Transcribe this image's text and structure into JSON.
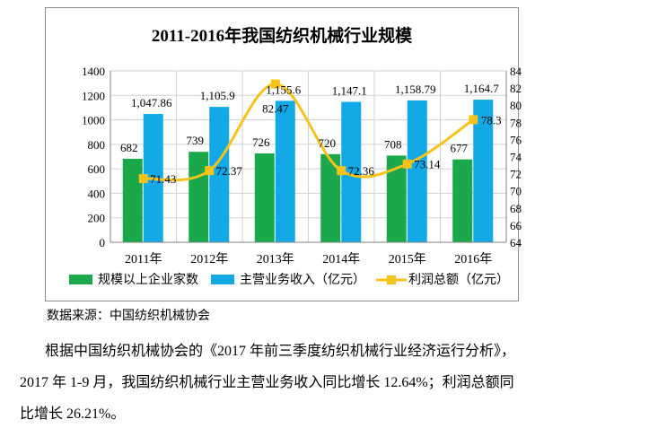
{
  "chart_data": {
    "type": "bar+line",
    "title": "2011-2016年我国纺织机械行业规模",
    "categories": [
      "2011年",
      "2012年",
      "2013年",
      "2014年",
      "2015年",
      "2016年"
    ],
    "series": [
      {
        "name": "规模以上企业家数",
        "type": "bar",
        "axis": "left",
        "color": "#1aa84b",
        "values": [
          682,
          739,
          726,
          720,
          708,
          677
        ],
        "labels": [
          "682",
          "739",
          "726",
          "720",
          "708",
          "677"
        ]
      },
      {
        "name": "主营业务收入（亿元）",
        "type": "bar",
        "axis": "left",
        "color": "#12a9e6",
        "values": [
          1047.86,
          1105.9,
          1155.6,
          1147.1,
          1158.79,
          1164.7
        ],
        "labels": [
          "1,047.86",
          "1,105.9",
          "1,155.6",
          "1,147.1",
          "1,158.79",
          "1,164.7"
        ]
      },
      {
        "name": "利润总额（亿元）",
        "type": "line",
        "axis": "right",
        "color": "#f7c31a",
        "values": [
          71.43,
          72.37,
          82.47,
          72.36,
          73.14,
          78.3
        ],
        "labels": [
          "71.43",
          "72.37",
          "82.47",
          "72.36",
          "73.14",
          "78.3"
        ]
      }
    ],
    "y_left": {
      "min": 0,
      "max": 1400,
      "step": 200,
      "ticks": [
        "0",
        "200",
        "400",
        "600",
        "800",
        "1000",
        "1200",
        "1400"
      ]
    },
    "y_right": {
      "min": 64,
      "max": 84,
      "step": 2,
      "ticks": [
        "64",
        "66",
        "68",
        "70",
        "72",
        "74",
        "76",
        "78",
        "80",
        "82",
        "84"
      ]
    },
    "grid": true,
    "legend_position": "bottom"
  },
  "source_text": "数据来源：中国纺织机械协会",
  "paragraph": {
    "line1": "根据中国纺织机械协会的《2017 年前三季度纺织机械行业经济运行分析》，",
    "line2": "2017 年 1-9 月，我国纺织机械行业主营业务收入同比增长 12.64%；利润总额同",
    "line3": "比增长 26.21%。"
  }
}
